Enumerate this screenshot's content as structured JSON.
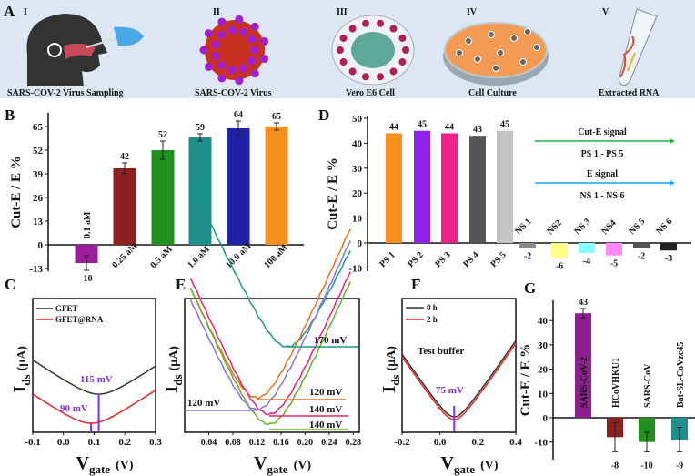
{
  "panel_a": {
    "label": "A",
    "steps": [
      {
        "numeral": "I",
        "caption": "SARS-COV-2 Virus Sampling"
      },
      {
        "numeral": "II",
        "caption": "SARS-COV-2 Virus"
      },
      {
        "numeral": "III",
        "caption": "Vero E6 Cell"
      },
      {
        "numeral": "IV",
        "caption": "Cell  Culture"
      },
      {
        "numeral": "V",
        "caption": "Extracted RNA"
      }
    ],
    "background": "#dde6f3"
  },
  "chart_data": [
    {
      "panel": "B",
      "type": "bar",
      "ylabel": "Cut-E / E %",
      "yticks": [
        "65",
        "52",
        "39",
        "26",
        "13",
        "0",
        "-13"
      ],
      "ylim": [
        -13,
        70
      ],
      "categories": [
        "0.1 aM",
        "0.25 aM",
        "0.5 aM",
        "1.0 aM",
        "10.0 aM",
        "100 aM"
      ],
      "values": [
        -10,
        42,
        52,
        59,
        64,
        65
      ],
      "value_labels": [
        "-10",
        "42",
        "52",
        "59",
        "64",
        "65"
      ],
      "errors": [
        4,
        3,
        5,
        2,
        4,
        2
      ],
      "colors": [
        "#9a1f9a",
        "#8e2020",
        "#22901e",
        "#1e8f8a",
        "#2020a8",
        "#f7901e"
      ]
    },
    {
      "panel": "D",
      "type": "bar",
      "ylabel": "Cut-E / E %",
      "yticks": [
        "50",
        "40",
        "30",
        "20",
        "10",
        "0",
        "-10"
      ],
      "ylim": [
        -10,
        50
      ],
      "categories": [
        "PS 1",
        "PS 2",
        "PS 3",
        "PS 4",
        "PS 5",
        "NS 1",
        "NS2",
        "NS 3",
        "NS4",
        "NS 5",
        "NS 6"
      ],
      "values": [
        44,
        45,
        44,
        43,
        45,
        -2,
        -6,
        -4,
        -5,
        -2,
        -3
      ],
      "value_labels": [
        "44",
        "45",
        "44",
        "43",
        "45",
        "-2",
        "-6",
        "-4",
        "-5",
        "-2",
        "-3"
      ],
      "colors": [
        "#f7901e",
        "#9020f0",
        "#f0208a",
        "#555555",
        "#c4c4c4",
        "#8a8a8a",
        "#ffff88",
        "#88ffff",
        "#ff88ff",
        "#555555",
        "#222222"
      ],
      "annotations": [
        {
          "title": "Cut-E signal",
          "subtitle": "PS 1 - PS 5",
          "color": "#1ab04a"
        },
        {
          "title": "E signal",
          "subtitle": "NS 1 - NS 6",
          "color": "#10a8e8"
        }
      ]
    },
    {
      "panel": "C",
      "type": "line",
      "xlabel_main": "V",
      "xlabel_sub": "gate",
      "xlabel_unit": "(V)",
      "ylabel_main": "I",
      "ylabel_sub": "ds",
      "ylabel_unit": "(μA)",
      "xticks": [
        "-0.1",
        "0.0",
        "0.1",
        "0.2",
        "0.3"
      ],
      "xlim": [
        -0.1,
        0.3
      ],
      "series": [
        {
          "name": "GFET",
          "dirac_v": 0.115,
          "color": "#333333",
          "marker_label": "115 mV"
        },
        {
          "name": "GFET@RNA",
          "dirac_v": 0.09,
          "color": "#ee2222",
          "marker_label": "90 mV"
        }
      ],
      "marker_color": "#8a2be2",
      "legend": "top-left"
    },
    {
      "panel": "E",
      "type": "line",
      "xlabel_main": "V",
      "xlabel_sub": "gate",
      "xlabel_unit": "(V)",
      "ylabel_main": "I",
      "ylabel_sub": "ds",
      "ylabel_unit": "(μA)",
      "xticks": [
        "0.04",
        "0.08",
        "0.12",
        "0.16",
        "0.20",
        "0.24",
        "0.28"
      ],
      "xlim": [
        0.0,
        0.29
      ],
      "series": [
        {
          "dirac_v": 0.17,
          "color": "#1a9a80",
          "label": "170 mV"
        },
        {
          "dirac_v": 0.12,
          "color": "#e8701a",
          "label": "120 mV"
        },
        {
          "dirac_v": 0.14,
          "color": "#ee2070",
          "label": "140 mV"
        },
        {
          "dirac_v": 0.14,
          "color": "#66b020",
          "label": "140 mV"
        },
        {
          "dirac_v": 0.12,
          "color": "#8a70d8",
          "label": "120 mV"
        }
      ]
    },
    {
      "panel": "F",
      "type": "line",
      "xlabel_main": "V",
      "xlabel_sub": "gate",
      "xlabel_unit": "(V)",
      "ylabel_main": "I",
      "ylabel_sub": "ds",
      "ylabel_unit": "(μA)",
      "xticks": [
        "-0.2",
        "0.0",
        "0.2",
        "0.4"
      ],
      "xlim": [
        -0.2,
        0.4
      ],
      "annotation": "Test buffer",
      "marker_label": "75 mV",
      "marker_v": 0.075,
      "marker_color": "#8a2be2",
      "series": [
        {
          "name": "0 h",
          "dirac_v": 0.075,
          "color": "#333333"
        },
        {
          "name": "2 h",
          "dirac_v": 0.075,
          "color": "#ee2222"
        }
      ],
      "legend": "top-left"
    },
    {
      "panel": "G",
      "type": "bar",
      "ylabel": "Cut-E / E %",
      "yticks": [
        "40",
        "30",
        "20",
        "10",
        "0",
        "-10"
      ],
      "ylim": [
        -15,
        45
      ],
      "categories": [
        "SARS-CoV-2",
        "HCoVHKU1",
        "SARS-CoV",
        "Bat-SL-CoVzc45"
      ],
      "values": [
        43,
        -8,
        -10,
        -9
      ],
      "value_labels": [
        "43",
        "-8",
        "-10",
        "-9"
      ],
      "errors": [
        2,
        6,
        4,
        5
      ],
      "colors": [
        "#8e1f8e",
        "#8e2020",
        "#22901e",
        "#1e8f8a"
      ]
    }
  ]
}
